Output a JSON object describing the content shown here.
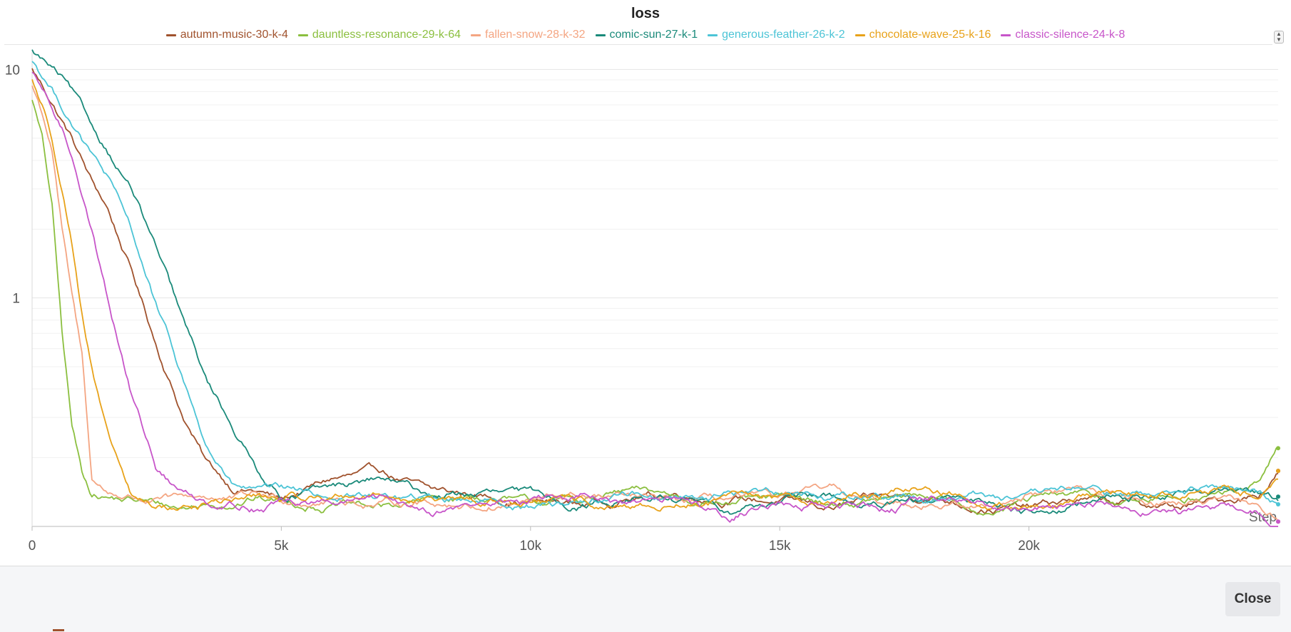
{
  "chart_data": {
    "type": "line",
    "title": "loss",
    "xlabel": "Step",
    "ylabel": "",
    "xlim": [
      0,
      25000
    ],
    "ylim": [
      0.1,
      12
    ],
    "y_scale": "log",
    "x_ticks": [
      0,
      5000,
      10000,
      15000,
      20000
    ],
    "x_tick_labels": [
      "0",
      "5k",
      "10k",
      "15k",
      "20k"
    ],
    "y_ticks": [
      1,
      10
    ],
    "y_tick_labels": [
      "1",
      "10"
    ],
    "grid": true,
    "legend_position": "top-center",
    "x": [
      0,
      200,
      400,
      600,
      800,
      1000,
      1200,
      1500,
      2000,
      2500,
      3000,
      3500,
      4000,
      4500,
      5000,
      6000,
      7000,
      8000,
      9000,
      10000,
      11000,
      12000,
      13000,
      14000,
      15000,
      16000,
      17000,
      18000,
      19000,
      20000,
      21000,
      22000,
      23000,
      24000,
      24600,
      25000
    ],
    "series": [
      {
        "name": "autumn-music-30-k-4",
        "color": "#a0522d",
        "values": [
          10,
          8.5,
          7.2,
          6.0,
          5.0,
          4.0,
          3.2,
          2.5,
          1.3,
          0.62,
          0.32,
          0.19,
          0.15,
          0.145,
          0.13,
          0.16,
          0.17,
          0.14,
          0.135,
          0.13,
          0.125,
          0.135,
          0.14,
          0.135,
          0.13,
          0.12,
          0.13,
          0.135,
          0.125,
          0.12,
          0.13,
          0.125,
          0.12,
          0.13,
          0.14,
          0.175
        ]
      },
      {
        "name": "dauntless-resonance-29-k-64",
        "color": "#8bbf3f",
        "values": [
          7.5,
          5.0,
          2.5,
          0.7,
          0.27,
          0.17,
          0.14,
          0.135,
          0.13,
          0.125,
          0.12,
          0.125,
          0.13,
          0.135,
          0.13,
          0.125,
          0.12,
          0.13,
          0.135,
          0.125,
          0.13,
          0.14,
          0.135,
          0.13,
          0.13,
          0.125,
          0.13,
          0.135,
          0.12,
          0.13,
          0.135,
          0.125,
          0.135,
          0.14,
          0.15,
          0.22
        ]
      },
      {
        "name": "fallen-snow-28-k-32",
        "color": "#f4a582",
        "values": [
          8.5,
          6.5,
          4.5,
          2.0,
          1.0,
          0.55,
          0.16,
          0.14,
          0.135,
          0.13,
          0.13,
          0.135,
          0.13,
          0.135,
          0.13,
          0.135,
          0.125,
          0.13,
          0.125,
          0.13,
          0.135,
          0.13,
          0.125,
          0.13,
          0.13,
          0.14,
          0.125,
          0.13,
          0.12,
          0.14,
          0.145,
          0.135,
          0.13,
          0.125,
          0.12,
          0.105
        ]
      },
      {
        "name": "comic-sun-27-k-1",
        "color": "#1a8a7a",
        "values": [
          12,
          11,
          10,
          9.0,
          7.8,
          6.5,
          5.4,
          4.4,
          3.0,
          1.6,
          0.8,
          0.42,
          0.28,
          0.18,
          0.14,
          0.145,
          0.16,
          0.135,
          0.14,
          0.135,
          0.125,
          0.135,
          0.13,
          0.12,
          0.13,
          0.135,
          0.12,
          0.125,
          0.13,
          0.12,
          0.125,
          0.135,
          0.14,
          0.145,
          0.14,
          0.135
        ]
      },
      {
        "name": "generous-feather-26-k-2",
        "color": "#4cc4d6",
        "values": [
          11,
          9.5,
          8.2,
          7.0,
          6.0,
          5.0,
          4.2,
          3.4,
          1.9,
          0.9,
          0.45,
          0.22,
          0.15,
          0.14,
          0.14,
          0.135,
          0.135,
          0.13,
          0.135,
          0.125,
          0.13,
          0.14,
          0.135,
          0.14,
          0.145,
          0.135,
          0.14,
          0.135,
          0.14,
          0.13,
          0.145,
          0.135,
          0.14,
          0.145,
          0.135,
          0.125
        ]
      },
      {
        "name": "chocolate-wave-25-k-16",
        "color": "#e8a21a",
        "values": [
          9,
          7.0,
          5.0,
          3.2,
          1.8,
          0.9,
          0.5,
          0.25,
          0.13,
          0.12,
          0.12,
          0.125,
          0.13,
          0.135,
          0.13,
          0.135,
          0.14,
          0.13,
          0.125,
          0.13,
          0.125,
          0.115,
          0.125,
          0.13,
          0.135,
          0.13,
          0.14,
          0.15,
          0.13,
          0.125,
          0.13,
          0.135,
          0.14,
          0.145,
          0.14,
          0.175
        ]
      },
      {
        "name": "classic-silence-24-k-8",
        "color": "#c755c9",
        "values": [
          9.5,
          8.0,
          6.6,
          5.4,
          4.2,
          3.0,
          2.0,
          1.05,
          0.38,
          0.18,
          0.14,
          0.13,
          0.13,
          0.125,
          0.13,
          0.125,
          0.13,
          0.12,
          0.125,
          0.13,
          0.135,
          0.12,
          0.13,
          0.115,
          0.13,
          0.125,
          0.12,
          0.13,
          0.125,
          0.12,
          0.13,
          0.125,
          0.12,
          0.12,
          0.115,
          0.105
        ]
      }
    ]
  },
  "footer": {
    "close_label": "Close"
  }
}
